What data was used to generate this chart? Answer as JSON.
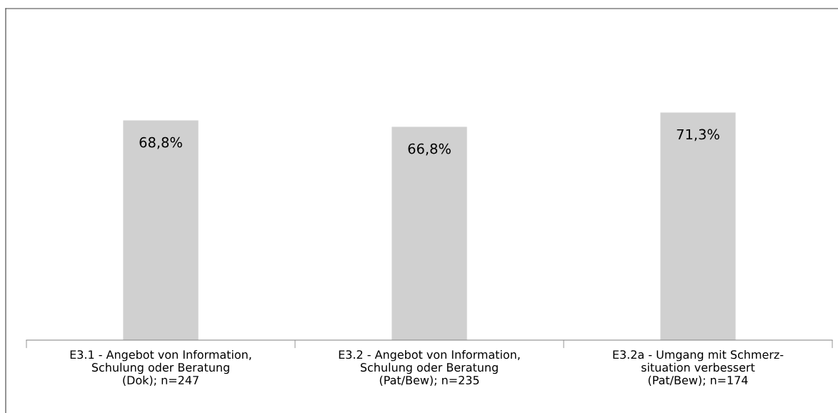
{
  "chart_data": {
    "type": "bar",
    "categories": [
      "E3.1 - Angebot von Information,\nSchulung oder Beratung\n(Dok); n=247",
      "E3.2 - Angebot von Information,\nSchulung oder Beratung\n(Pat/Bew); n=235",
      "E3.2a - Umgang mit Schmerz-\nsituation verbessert\n(Pat/Bew); n=174"
    ],
    "values": [
      68.8,
      66.8,
      71.3
    ],
    "value_labels": [
      "68,8%",
      "66,8%",
      "71,3%"
    ],
    "color": "#d0d0d0",
    "grid": false,
    "legend": false,
    "tick_labels": "x"
  }
}
